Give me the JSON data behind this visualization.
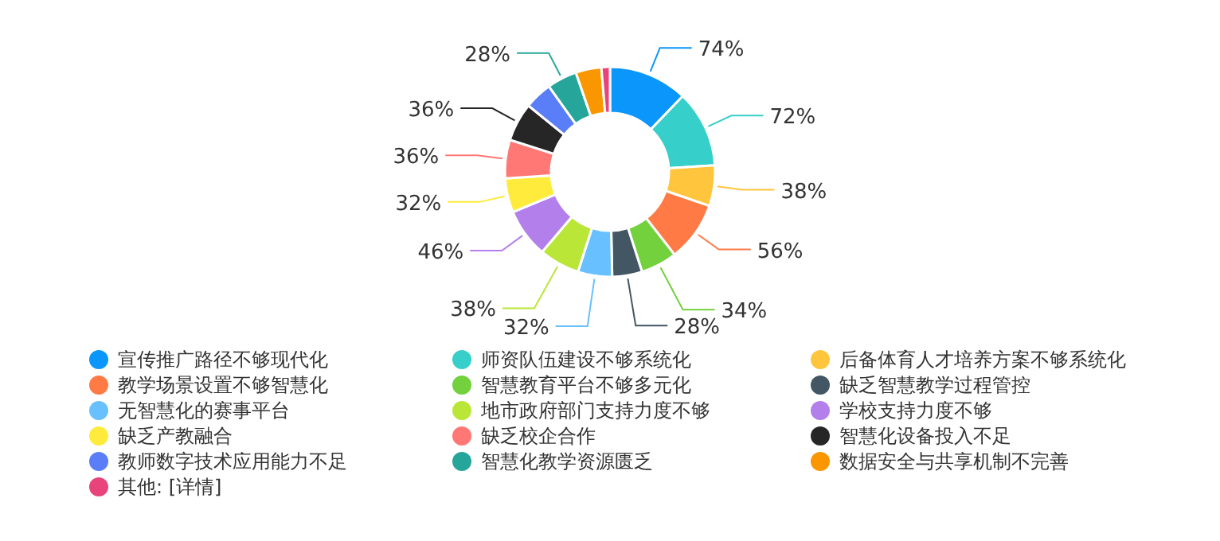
{
  "chart_data": {
    "type": "donut",
    "categories": [
      "宣传推广路径不够现代化",
      "师资队伍建设不够系统化",
      "后备体育人才培养方案不够系统化",
      "教学场景设置不够智慧化",
      "智慧教育平台不够多元化",
      "缺乏智慧教学过程管控",
      "无智慧化的赛事平台",
      "地市政府部门支持力度不够",
      "学校支持力度不够",
      "缺乏产教融合",
      "缺乏校企合作",
      "智慧化设备投入不足",
      "教师数字技术应用能力不足",
      "智慧化教学资源匮乏",
      "数据安全与共享机制不完善",
      "其他: [详情]"
    ],
    "values": [
      74,
      72,
      38,
      56,
      34,
      28,
      32,
      38,
      46,
      32,
      36,
      36,
      26,
      28,
      24,
      8
    ],
    "value_labels": [
      "74%",
      "72%",
      "38%",
      "56%",
      "34%",
      "28%",
      "32%",
      "38%",
      "46%",
      "32%",
      "36%",
      "36%",
      null,
      "28%",
      null,
      null
    ],
    "colors": [
      "#0a96fa",
      "#36cfc9",
      "#ffc53d",
      "#ff7a45",
      "#73d13d",
      "#435663",
      "#69c0ff",
      "#bae637",
      "#b37feb",
      "#ffeb3b",
      "#ff7875",
      "#262626",
      "#597ef7",
      "#26a69a",
      "#fa9600",
      "#e8437a"
    ],
    "legend": "bottom"
  }
}
